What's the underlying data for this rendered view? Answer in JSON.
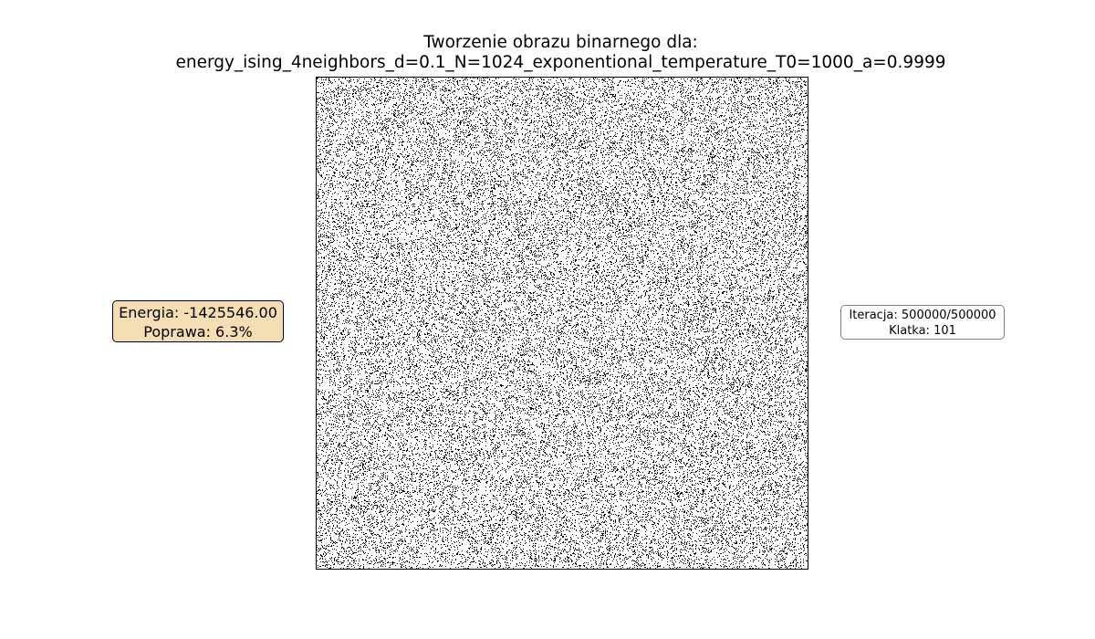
{
  "figure": {
    "title_line1": "Tworzenie obrazu binarnego dla:",
    "title_line2": "energy_ising_4neighbors_d=0.1_N=1024_exponentional_temperature_T0=1000_a=0.9999"
  },
  "energy_box": {
    "energy_text": "Energia: -1425546.00",
    "improvement_text": "Poprawa: 6.3%",
    "background_color": "#f5deb3"
  },
  "info_box": {
    "iteration_text": "Iteracja: 500000/500000",
    "frame_text": "Klatka: 101"
  },
  "binary_image": {
    "colors": {
      "on": "#000000",
      "off": "#ffffff"
    }
  }
}
